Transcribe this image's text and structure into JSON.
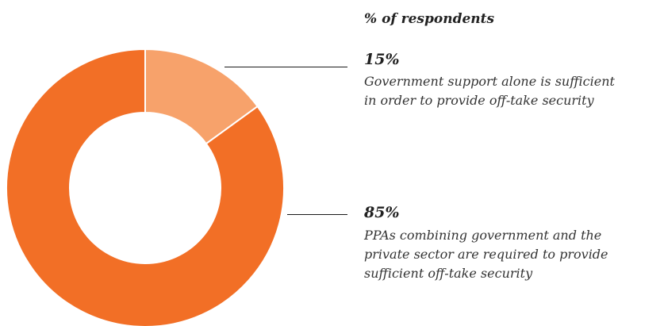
{
  "chart_data": {
    "type": "pie",
    "subtitle": "% of respondents",
    "slices": [
      {
        "value": 15,
        "value_label": "15%",
        "label": "Government support alone is sufficient in order to provide off-take security",
        "color": "#f7a26b"
      },
      {
        "value": 85,
        "value_label": "85%",
        "label": "PPAs combining government and the private sector are required to provide sufficient off-take security",
        "color": "#f26f26"
      }
    ],
    "donut": true,
    "legend": "right"
  },
  "callouts": [
    {
      "pct": "15%",
      "text": "Government support alone is sufficient\nin order to provide off-take security"
    },
    {
      "pct": "85%",
      "text": "PPAs combining government and the\nprivate sector are required to provide\nsufficient off-take security"
    }
  ]
}
